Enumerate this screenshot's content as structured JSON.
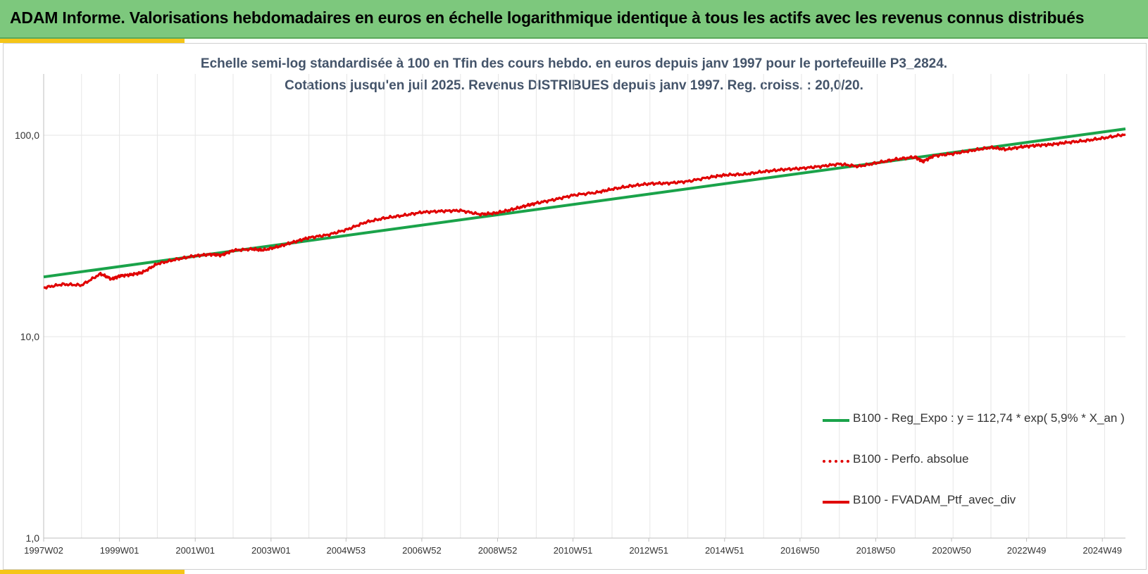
{
  "header": {
    "title": "ADAM Informe. Valorisations hebdomadaires en euros en échelle logarithmique identique à tous les actifs avec les revenus connus distribués"
  },
  "chart_data": {
    "type": "line",
    "title": "Echelle semi-log standardisée  à 100 en Tfin des cours hebdo.  en euros depuis janv 1997 pour  le portefeuille P3_2824.",
    "subtitle": "Cotations  jusqu'en juil 2025. Revenus DISTRIBUES depuis janv 1997. Reg. croiss. : 20,0/20.",
    "y_scale": "log",
    "ylim": [
      1,
      200
    ],
    "y_ticks": [
      {
        "value": 1,
        "label": "1,0"
      },
      {
        "value": 10,
        "label": "10,0"
      },
      {
        "value": 100,
        "label": "100,0"
      }
    ],
    "xlim": [
      1997.0,
      2025.55
    ],
    "x_ticks": [
      {
        "value": 1997.0,
        "label": "1997W02"
      },
      {
        "value": 1999.0,
        "label": "1999W01"
      },
      {
        "value": 2001.0,
        "label": "2001W01"
      },
      {
        "value": 2003.0,
        "label": "2003W01"
      },
      {
        "value": 2004.98,
        "label": "2004W53"
      },
      {
        "value": 2006.98,
        "label": "2006W52"
      },
      {
        "value": 2008.98,
        "label": "2008W52"
      },
      {
        "value": 2010.97,
        "label": "2010W51"
      },
      {
        "value": 2012.97,
        "label": "2012W51"
      },
      {
        "value": 2014.97,
        "label": "2014W51"
      },
      {
        "value": 2016.96,
        "label": "2016W50"
      },
      {
        "value": 2018.96,
        "label": "2018W50"
      },
      {
        "value": 2020.96,
        "label": "2020W50"
      },
      {
        "value": 2022.94,
        "label": "2022W49"
      },
      {
        "value": 2024.94,
        "label": "2024W49"
      }
    ],
    "grid": true,
    "legend_position": "bottom-right",
    "series": [
      {
        "name": "B100 - Reg_Expo : y = 112,74 * exp( 5,9% *  X_an )",
        "color": "#1aa34a",
        "style": "solid",
        "x": [
          1997.0,
          2025.55
        ],
        "y": [
          19.8,
          107.5
        ]
      },
      {
        "name": "B100 - Perfo. absolue",
        "color": "#e00000",
        "style": "dotted",
        "x": [],
        "y": []
      },
      {
        "name": "B100 - FVADAM_Ptf_avec_div",
        "color": "#e00000",
        "style": "solid",
        "x": [
          1997.0,
          1997.5,
          1998.0,
          1998.5,
          1998.8,
          1999.0,
          1999.3,
          1999.6,
          2000.0,
          2000.5,
          2001.0,
          2001.4,
          2001.7,
          2002.0,
          2002.5,
          2002.8,
          2003.2,
          2003.6,
          2004.0,
          2004.5,
          2005.0,
          2005.5,
          2006.0,
          2006.5,
          2007.0,
          2007.5,
          2008.0,
          2008.5,
          2008.9,
          2009.3,
          2009.7,
          2010.0,
          2010.5,
          2011.0,
          2011.6,
          2012.0,
          2012.5,
          2013.0,
          2013.5,
          2014.0,
          2014.6,
          2015.0,
          2015.5,
          2016.0,
          2016.5,
          2017.0,
          2017.5,
          2018.0,
          2018.5,
          2019.0,
          2019.5,
          2020.0,
          2020.2,
          2020.5,
          2021.0,
          2021.5,
          2022.0,
          2022.4,
          2022.8,
          2023.2,
          2023.6,
          2024.0,
          2024.5,
          2025.0,
          2025.55
        ],
        "y": [
          17.5,
          18.2,
          18.0,
          20.5,
          19.3,
          20.0,
          20.3,
          20.8,
          23.0,
          24.2,
          25.2,
          25.6,
          25.4,
          26.8,
          27.2,
          26.9,
          28.0,
          29.5,
          31.0,
          32.0,
          34.0,
          37.0,
          38.8,
          40.0,
          41.5,
          42.0,
          42.3,
          40.5,
          41.0,
          42.5,
          44.5,
          46.0,
          48.0,
          50.5,
          52.0,
          54.0,
          56.0,
          57.5,
          57.8,
          59.0,
          62.0,
          63.5,
          64.0,
          66.0,
          67.5,
          68.5,
          70.0,
          72.0,
          70.0,
          73.0,
          76.0,
          78.0,
          74.0,
          79.0,
          81.0,
          84.0,
          87.0,
          85.0,
          87.5,
          89.0,
          90.0,
          92.0,
          94.0,
          97.0,
          101.0
        ]
      }
    ]
  }
}
